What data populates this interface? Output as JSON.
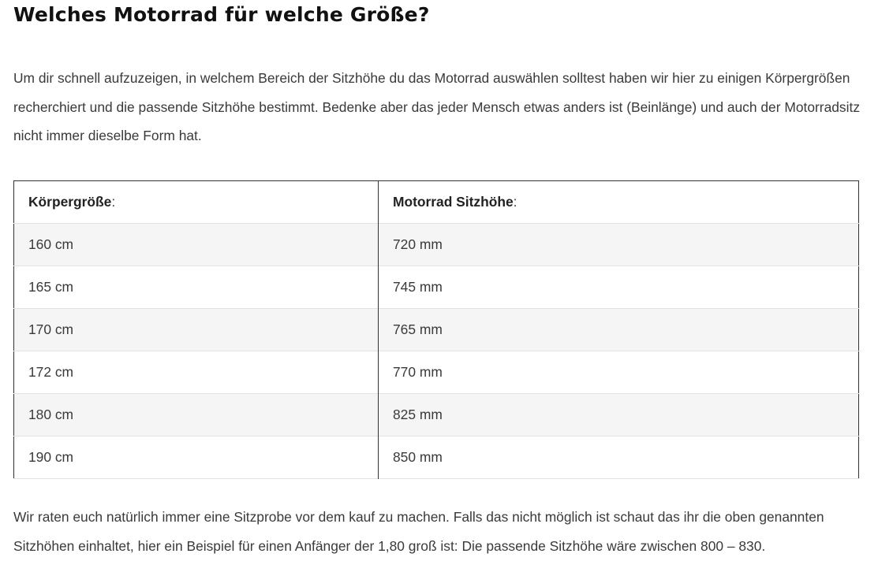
{
  "title": "Welches Motorrad für welche Größe?",
  "intro": "Um dir schnell aufzuzeigen, in welchem Bereich der Sitzhöhe du das Motorrad auswählen solltest haben wir hier zu einigen Körpergrößen recherchiert und die passende Sitzhöhe bestimmt. Bedenke aber das jeder Mensch etwas anders ist (Beinlänge) und auch der Motorradsitz nicht immer dieselbe Form hat.",
  "table": {
    "headers": [
      {
        "label": "Körpergröße",
        "suffix": ":"
      },
      {
        "label": "Motorrad Sitzhöhe",
        "suffix": ":"
      }
    ],
    "rows": [
      [
        "160 cm",
        "720 mm"
      ],
      [
        "165 cm",
        "745 mm"
      ],
      [
        "170 cm",
        "765 mm"
      ],
      [
        "172 cm",
        "770 mm"
      ],
      [
        "180 cm",
        "825 mm"
      ],
      [
        "190 cm",
        "850 mm"
      ]
    ]
  },
  "outro": "Wir raten euch natürlich immer eine Sitzprobe vor dem kauf zu machen. Falls das nicht möglich ist schaut das ihr die oben genannten Sitzhöhen einhaltet, hier ein Beispiel für einen Anfänger der 1,80 groß ist: Die passende Sitzhöhe wäre zwischen 800 – 830."
}
